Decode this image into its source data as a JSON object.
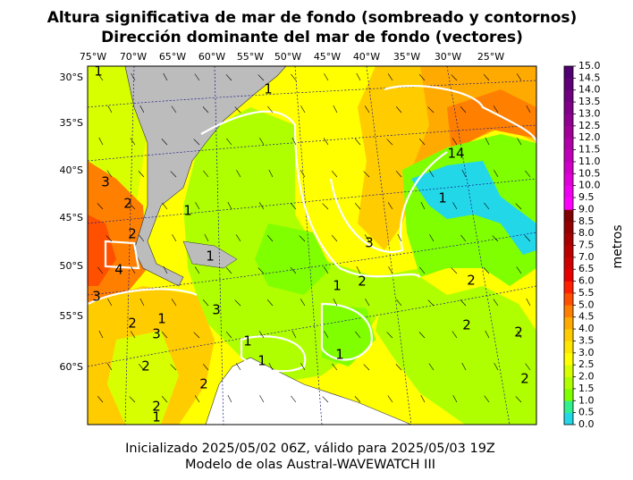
{
  "title": {
    "line1": "Altura significativa de mar de fondo (sombreado y contornos)",
    "line2": "Dirección dominante del mar de fondo (vectores)"
  },
  "map": {
    "lon_labels": [
      "75°W",
      "70°W",
      "65°W",
      "60°W",
      "55°W",
      "50°W",
      "45°W",
      "40°W",
      "35°W",
      "30°W",
      "25°W"
    ],
    "lat_labels": [
      "30°S",
      "35°S",
      "40°S",
      "45°S",
      "50°S",
      "55°S",
      "60°S"
    ],
    "contour_labels": [
      "1",
      "1",
      "14",
      "1",
      "3",
      "2",
      "2",
      "1",
      "1",
      "4",
      "3",
      "3",
      "2",
      "1",
      "3",
      "2",
      "1",
      "3",
      "1",
      "1",
      "1",
      "2",
      "2",
      "1",
      "2",
      "2",
      "2",
      "2",
      "2"
    ]
  },
  "colorbar": {
    "label": "metros",
    "ticks": [
      "0.0",
      "0.5",
      "1.0",
      "1.5",
      "2.0",
      "2.5",
      "3.0",
      "3.5",
      "4.0",
      "4.5",
      "5.0",
      "5.5",
      "6.0",
      "6.5",
      "7.0",
      "7.5",
      "8.0",
      "8.5",
      "9.0",
      "9.5",
      "10.0",
      "10.5",
      "11.0",
      "11.5",
      "12.0",
      "12.5",
      "13.0",
      "13.5",
      "14.0",
      "14.5",
      "15.0"
    ],
    "colors": [
      "#22d8e8",
      "#30f090",
      "#80ff00",
      "#b0ff00",
      "#d8ff00",
      "#ffff00",
      "#ffe600",
      "#ffcc00",
      "#ffaa00",
      "#ff8000",
      "#ff5000",
      "#ff2000",
      "#e80000",
      "#d00000",
      "#bc0000",
      "#a80000",
      "#940000",
      "#800000",
      "#ff00ff",
      "#f000f0",
      "#e000d8",
      "#d000c8",
      "#c000b8",
      "#b000a8",
      "#a00098",
      "#900090",
      "#800088",
      "#700080",
      "#600078",
      "#500070"
    ]
  },
  "footer": {
    "line1": "Inicializado 2025/05/02 06Z, válido para 2025/05/03 19Z",
    "line2": "Modelo de olas Austral-WAVEWATCH III"
  }
}
